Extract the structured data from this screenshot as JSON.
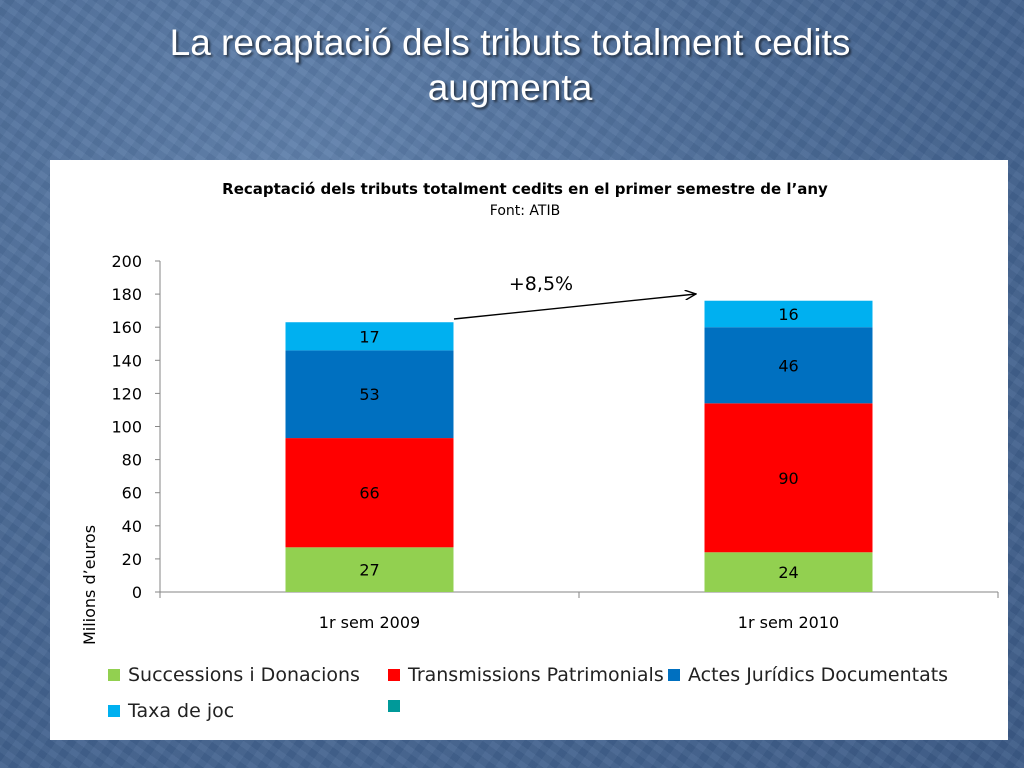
{
  "slide": {
    "title_line1": "La recaptació dels tributs totalment cedits",
    "title_line2": "augmenta"
  },
  "chart_data": {
    "type": "bar",
    "stacked": true,
    "title": "Recaptació dels tributs totalment cedits en el primer semestre de l’any",
    "subtitle": "Font: ATIB",
    "ylabel": "Milions d’euros",
    "xlabel": "",
    "ylim": [
      0,
      200
    ],
    "yticks": [
      0,
      20,
      40,
      60,
      80,
      100,
      120,
      140,
      160,
      180,
      200
    ],
    "categories": [
      "1r sem 2009",
      "1r sem 2010"
    ],
    "series": [
      {
        "name": "Successions i Donacions",
        "values": [
          27,
          24
        ],
        "color": "#92d050"
      },
      {
        "name": "Transmissions Patrimonials",
        "values": [
          66,
          90
        ],
        "color": "#ff0000"
      },
      {
        "name": "Actes Jurídics Documentats",
        "values": [
          53,
          46
        ],
        "color": "#0070c0"
      },
      {
        "name": "Taxa de joc",
        "values": [
          17,
          16
        ],
        "color": "#00b0f0"
      },
      {
        "name": "",
        "values": [
          0,
          0
        ],
        "color": "#009999"
      }
    ],
    "annotation": "+8,5%",
    "grid": false,
    "legend_position": "bottom"
  }
}
